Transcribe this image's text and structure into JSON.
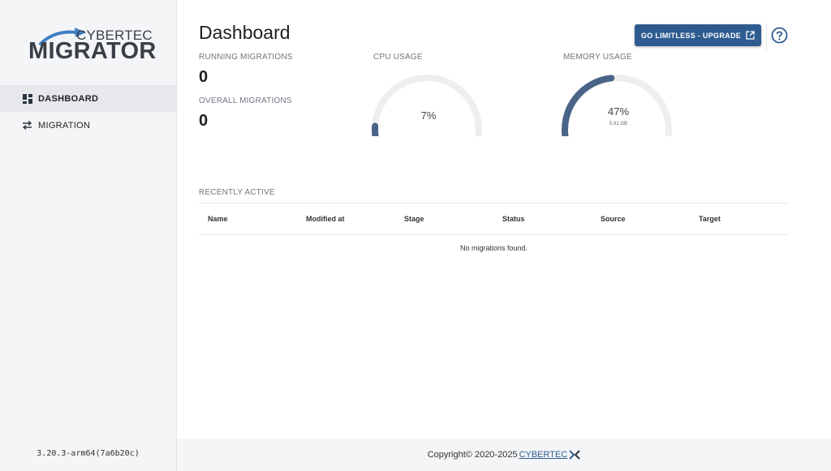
{
  "sidebar": {
    "brand_top": "CYBERTEC",
    "brand_main": "MIGRATOR",
    "items": [
      {
        "label": "DASHBOARD",
        "icon": "dashboard-icon",
        "active": true
      },
      {
        "label": "MIGRATION",
        "icon": "swap-arrows-icon",
        "active": false
      }
    ],
    "version": "3.20.3-arm64(7a6b20c)"
  },
  "header": {
    "title": "Dashboard",
    "upgrade_label": "GO LIMITLESS - UPGRADE",
    "upgrade_icon": "external-link-icon",
    "help_icon": "help-circle-icon"
  },
  "stats": {
    "running_label": "RUNNING MIGRATIONS",
    "running_value": "0",
    "overall_label": "OVERALL MIGRATIONS",
    "overall_value": "0"
  },
  "cpu": {
    "label": "CPU USAGE",
    "percent_text": "7%",
    "fraction": 0.07
  },
  "memory": {
    "label": "MEMORY USAGE",
    "percent_text": "47%",
    "fraction": 0.47,
    "detail": "5.91 GB"
  },
  "recent": {
    "title": "RECENTLY ACTIVE",
    "columns": [
      "Name",
      "Modified at",
      "Stage",
      "Status",
      "Source",
      "Target"
    ],
    "empty_text": "No migrations found."
  },
  "footer": {
    "copyright": "Copyright© 2020-2025",
    "link_text": "CYBERTEC"
  },
  "colors": {
    "accent": "#2e5b8f",
    "gauge_fill": "#4a6488",
    "gauge_track": "#eeeeee"
  }
}
